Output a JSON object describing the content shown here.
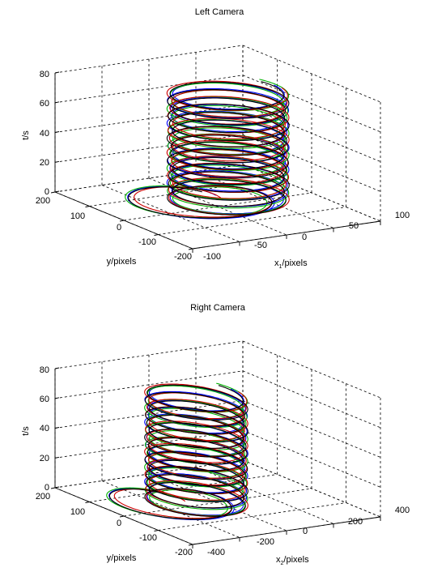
{
  "figure": {
    "panels": [
      {
        "title": "Left Camera",
        "x_label_main": "x",
        "x_label_sub": "1",
        "x_label_rest": "/pixels",
        "y_label": "y/pixels",
        "z_label": "t/s",
        "x_ticks": [
          "-100",
          "-50",
          "0",
          "50",
          "100"
        ],
        "y_ticks": [
          "-200",
          "-100",
          "0",
          "100",
          "200"
        ],
        "z_ticks": [
          "0",
          "20",
          "40",
          "60",
          "80"
        ]
      },
      {
        "title": "Right Camera",
        "x_label_main": "x",
        "x_label_sub": "2",
        "x_label_rest": "/pixels",
        "y_label": "y/pixels",
        "z_label": "t/s",
        "x_ticks": [
          "-400",
          "-200",
          "0",
          "200",
          "400"
        ],
        "y_ticks": [
          "-200",
          "-100",
          "0",
          "100",
          "200"
        ],
        "z_ticks": [
          "0",
          "20",
          "40",
          "60",
          "80"
        ]
      }
    ]
  },
  "chart_data": [
    {
      "type": "line",
      "subtype": "3d-helix",
      "title": "Left Camera",
      "xlabel": "x1/pixels",
      "ylabel": "y/pixels",
      "zlabel": "t/s",
      "xlim": [
        -100,
        100
      ],
      "ylim": [
        -200,
        200
      ],
      "zlim": [
        0,
        80
      ],
      "grid": true,
      "helix": {
        "x_center": 0,
        "y_center": -30,
        "x_radius": 50,
        "y_radius": 100,
        "t_start": 0,
        "t_end": 80,
        "turns": 16
      },
      "series": [
        {
          "color": "#0000ff",
          "t_shift": 0.0
        },
        {
          "color": "#00b000",
          "t_shift": 0.35
        },
        {
          "color": "#cc0000",
          "t_shift": -0.3
        },
        {
          "color": "#000000",
          "t_shift": 0.15
        }
      ]
    },
    {
      "type": "line",
      "subtype": "3d-helix",
      "title": "Right Camera",
      "xlabel": "x2/pixels",
      "ylabel": "y/pixels",
      "zlabel": "t/s",
      "xlim": [
        -400,
        400
      ],
      "ylim": [
        -200,
        200
      ],
      "zlim": [
        0,
        80
      ],
      "grid": true,
      "helix": {
        "x_center": -150,
        "y_center": -40,
        "x_radius": 150,
        "y_radius": 100,
        "t_start": 0,
        "t_end": 80,
        "turns": 16
      },
      "series": [
        {
          "color": "#0000ff",
          "t_shift": 0.0
        },
        {
          "color": "#00b000",
          "t_shift": 0.35
        },
        {
          "color": "#cc0000",
          "t_shift": -0.3
        },
        {
          "color": "#000000",
          "t_shift": 0.15
        }
      ]
    }
  ]
}
